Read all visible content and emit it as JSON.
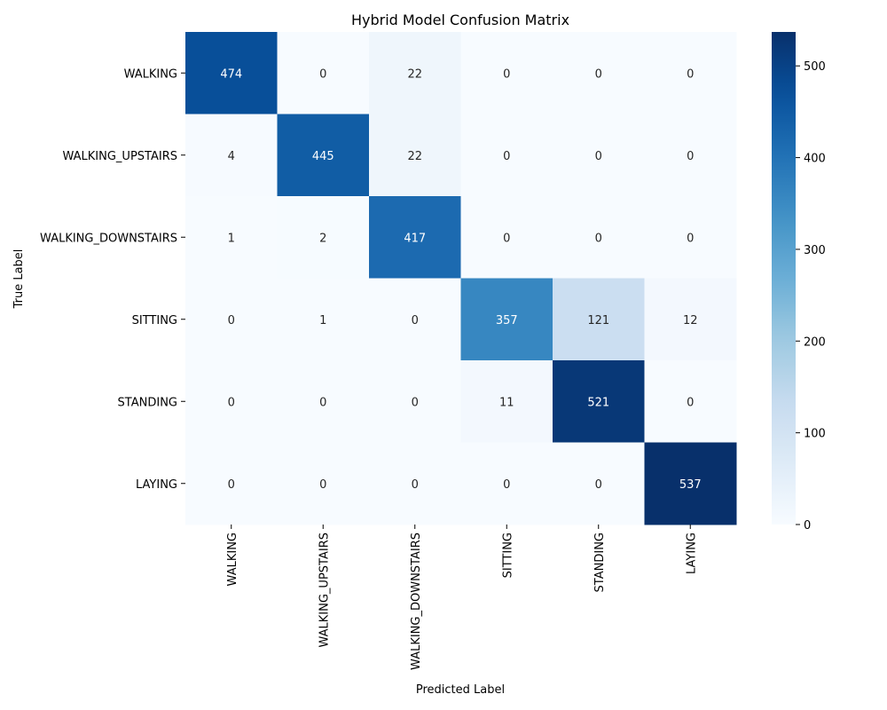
{
  "chart_data": {
    "type": "heatmap",
    "title": "Hybrid Model Confusion Matrix",
    "xlabel": "Predicted Label",
    "ylabel": "True Label",
    "x_categories": [
      "WALKING",
      "WALKING_UPSTAIRS",
      "WALKING_DOWNSTAIRS",
      "SITTING",
      "STANDING",
      "LAYING"
    ],
    "y_categories": [
      "WALKING",
      "WALKING_UPSTAIRS",
      "WALKING_DOWNSTAIRS",
      "SITTING",
      "STANDING",
      "LAYING"
    ],
    "matrix": [
      [
        474,
        0,
        22,
        0,
        0,
        0
      ],
      [
        4,
        445,
        22,
        0,
        0,
        0
      ],
      [
        1,
        2,
        417,
        0,
        0,
        0
      ],
      [
        0,
        1,
        0,
        357,
        121,
        12
      ],
      [
        0,
        0,
        0,
        11,
        521,
        0
      ],
      [
        0,
        0,
        0,
        0,
        0,
        537
      ]
    ],
    "colorbar": {
      "colormap": "Blues",
      "vmin": 0,
      "vmax": 537,
      "ticks": [
        0,
        100,
        200,
        300,
        400,
        500
      ]
    },
    "grid": false,
    "legend": "colorbar-right"
  }
}
